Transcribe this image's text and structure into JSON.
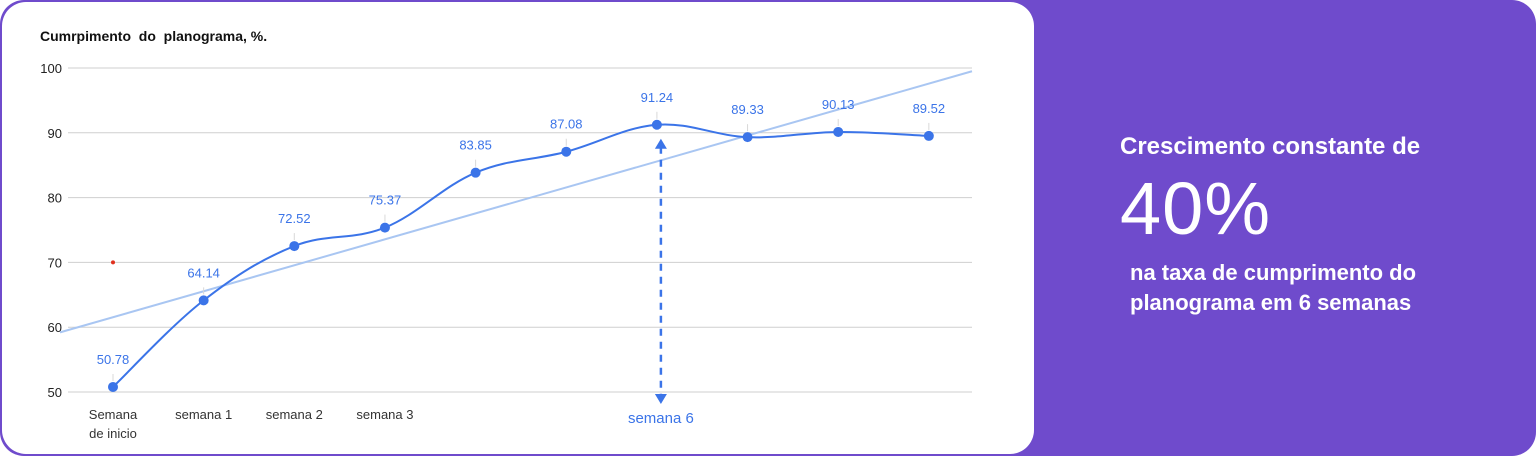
{
  "chart_data": {
    "type": "line",
    "title": "Cumrpimento  do  planograma, %.",
    "xlabel": "",
    "ylabel": "",
    "ylim": [
      50,
      100
    ],
    "yticks": [
      50,
      60,
      70,
      80,
      90,
      100
    ],
    "grid": true,
    "legend": "none",
    "categories": [
      "Semana de inicio",
      "semana 1",
      "semana 2",
      "semana 3",
      "",
      "",
      "semana 6",
      "",
      "",
      ""
    ],
    "values": [
      50.78,
      64.14,
      72.52,
      75.37,
      83.85,
      87.08,
      91.24,
      89.33,
      90.13,
      89.52
    ],
    "trendline": {
      "start": 59.2,
      "end": 99.5
    },
    "marker_annotation": {
      "category_index": 6,
      "label": "semana 6"
    },
    "colors": {
      "line": "#3b74e8",
      "trendline": "#a9c6f2",
      "label": "#3b74e8",
      "grid": "#cfcfcf",
      "red_dot": "#e0301e"
    }
  },
  "promo": {
    "lead": "Crescimento constante de",
    "big": "40%",
    "sub_line1": "na taxa de cumprimento do",
    "sub_line2": "planograma em 6 semanas"
  },
  "colors": {
    "panel_bg": "#6f4bcc",
    "card_bg": "#ffffff"
  }
}
